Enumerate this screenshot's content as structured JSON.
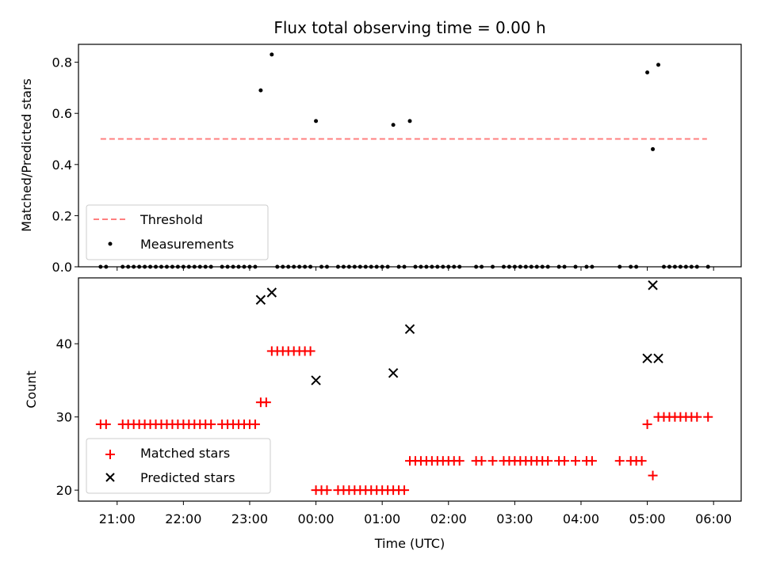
{
  "chart_data": [
    {
      "type": "scatter",
      "title": "Flux total observing time = 0.00 h",
      "xlabel": "",
      "ylabel": "Matched/Predicted stars",
      "ylim": [
        0,
        0.87
      ],
      "yticks": [
        "0.0",
        "0.2",
        "0.4",
        "0.6",
        "0.8"
      ],
      "ytick_values": [
        0,
        0.2,
        0.4,
        0.6,
        0.8
      ],
      "legend_placement": "lower-left",
      "threshold": {
        "name": "Threshold",
        "value": 0.5,
        "x_range": [
          "20:45",
          "05:54"
        ],
        "color": "#ff7f7f",
        "style": "dashed"
      },
      "series": [
        {
          "name": "Measurements",
          "color": "#000000",
          "marker": "dot",
          "points": [
            [
              "23:10",
              0.69
            ],
            [
              "23:20",
              0.83
            ],
            [
              "00:00",
              0.57
            ],
            [
              "01:10",
              0.555
            ],
            [
              "01:25",
              0.57
            ],
            [
              "05:00",
              0.76
            ],
            [
              "05:05",
              0.46
            ],
            [
              "05:10",
              0.79
            ],
            [
              "20:45",
              0
            ],
            [
              "20:50",
              0
            ],
            [
              "21:05",
              0
            ],
            [
              "21:10",
              0
            ],
            [
              "21:15",
              0
            ],
            [
              "21:20",
              0
            ],
            [
              "21:25",
              0
            ],
            [
              "21:30",
              0
            ],
            [
              "21:35",
              0
            ],
            [
              "21:40",
              0
            ],
            [
              "21:45",
              0
            ],
            [
              "21:50",
              0
            ],
            [
              "21:55",
              0
            ],
            [
              "22:00",
              0
            ],
            [
              "22:05",
              0
            ],
            [
              "22:10",
              0
            ],
            [
              "22:15",
              0
            ],
            [
              "22:20",
              0
            ],
            [
              "22:25",
              0
            ],
            [
              "22:35",
              0
            ],
            [
              "22:40",
              0
            ],
            [
              "22:45",
              0
            ],
            [
              "22:50",
              0
            ],
            [
              "22:55",
              0
            ],
            [
              "23:00",
              0
            ],
            [
              "23:05",
              0
            ],
            [
              "23:25",
              0
            ],
            [
              "23:30",
              0
            ],
            [
              "23:35",
              0
            ],
            [
              "23:40",
              0
            ],
            [
              "23:45",
              0
            ],
            [
              "23:50",
              0
            ],
            [
              "23:55",
              0
            ],
            [
              "00:05",
              0
            ],
            [
              "00:10",
              0
            ],
            [
              "00:20",
              0
            ],
            [
              "00:25",
              0
            ],
            [
              "00:30",
              0
            ],
            [
              "00:35",
              0
            ],
            [
              "00:40",
              0
            ],
            [
              "00:45",
              0
            ],
            [
              "00:50",
              0
            ],
            [
              "00:55",
              0
            ],
            [
              "01:00",
              0
            ],
            [
              "01:05",
              0
            ],
            [
              "01:15",
              0
            ],
            [
              "01:20",
              0
            ],
            [
              "01:30",
              0
            ],
            [
              "01:35",
              0
            ],
            [
              "01:40",
              0
            ],
            [
              "01:45",
              0
            ],
            [
              "01:50",
              0
            ],
            [
              "01:55",
              0
            ],
            [
              "02:00",
              0
            ],
            [
              "02:05",
              0
            ],
            [
              "02:10",
              0
            ],
            [
              "02:25",
              0
            ],
            [
              "02:30",
              0
            ],
            [
              "02:40",
              0
            ],
            [
              "02:50",
              0
            ],
            [
              "02:55",
              0
            ],
            [
              "03:00",
              0
            ],
            [
              "03:05",
              0
            ],
            [
              "03:10",
              0
            ],
            [
              "03:15",
              0
            ],
            [
              "03:20",
              0
            ],
            [
              "03:25",
              0
            ],
            [
              "03:30",
              0
            ],
            [
              "03:40",
              0
            ],
            [
              "03:45",
              0
            ],
            [
              "03:55",
              0
            ],
            [
              "04:05",
              0
            ],
            [
              "04:10",
              0
            ],
            [
              "04:35",
              0
            ],
            [
              "04:45",
              0
            ],
            [
              "04:50",
              0
            ],
            [
              "05:15",
              0
            ],
            [
              "05:20",
              0
            ],
            [
              "05:25",
              0
            ],
            [
              "05:30",
              0
            ],
            [
              "05:35",
              0
            ],
            [
              "05:40",
              0
            ],
            [
              "05:45",
              0
            ],
            [
              "05:55",
              0
            ]
          ]
        }
      ]
    },
    {
      "type": "scatter",
      "title": "",
      "xlabel": "Time (UTC)",
      "ylabel": "Count",
      "ylim": [
        18.5,
        49
      ],
      "yticks": [
        "20",
        "30",
        "40"
      ],
      "ytick_values": [
        20,
        30,
        40
      ],
      "xlim": [
        "20:25",
        "06:25"
      ],
      "xticks": [
        "21:00",
        "22:00",
        "23:00",
        "00:00",
        "01:00",
        "02:00",
        "03:00",
        "04:00",
        "05:00",
        "06:00"
      ],
      "legend_placement": "lower-left",
      "series": [
        {
          "name": "Matched stars",
          "color": "#ff0000",
          "marker": "plus",
          "points": [
            [
              "20:45",
              29
            ],
            [
              "20:50",
              29
            ],
            [
              "21:05",
              29
            ],
            [
              "21:10",
              29
            ],
            [
              "21:15",
              29
            ],
            [
              "21:20",
              29
            ],
            [
              "21:25",
              29
            ],
            [
              "21:30",
              29
            ],
            [
              "21:35",
              29
            ],
            [
              "21:40",
              29
            ],
            [
              "21:45",
              29
            ],
            [
              "21:50",
              29
            ],
            [
              "21:55",
              29
            ],
            [
              "22:00",
              29
            ],
            [
              "22:05",
              29
            ],
            [
              "22:10",
              29
            ],
            [
              "22:15",
              29
            ],
            [
              "22:20",
              29
            ],
            [
              "22:25",
              29
            ],
            [
              "22:35",
              29
            ],
            [
              "22:40",
              29
            ],
            [
              "22:45",
              29
            ],
            [
              "22:50",
              29
            ],
            [
              "22:55",
              29
            ],
            [
              "23:00",
              29
            ],
            [
              "23:05",
              29
            ],
            [
              "23:10",
              32
            ],
            [
              "23:15",
              32
            ],
            [
              "23:20",
              39
            ],
            [
              "23:25",
              39
            ],
            [
              "23:30",
              39
            ],
            [
              "23:35",
              39
            ],
            [
              "23:40",
              39
            ],
            [
              "23:45",
              39
            ],
            [
              "23:50",
              39
            ],
            [
              "23:55",
              39
            ],
            [
              "00:00",
              20
            ],
            [
              "00:05",
              20
            ],
            [
              "00:10",
              20
            ],
            [
              "00:20",
              20
            ],
            [
              "00:25",
              20
            ],
            [
              "00:30",
              20
            ],
            [
              "00:35",
              20
            ],
            [
              "00:40",
              20
            ],
            [
              "00:45",
              20
            ],
            [
              "00:50",
              20
            ],
            [
              "00:55",
              20
            ],
            [
              "01:00",
              20
            ],
            [
              "01:05",
              20
            ],
            [
              "01:10",
              20
            ],
            [
              "01:15",
              20
            ],
            [
              "01:20",
              20
            ],
            [
              "01:25",
              24
            ],
            [
              "01:30",
              24
            ],
            [
              "01:35",
              24
            ],
            [
              "01:40",
              24
            ],
            [
              "01:45",
              24
            ],
            [
              "01:50",
              24
            ],
            [
              "01:55",
              24
            ],
            [
              "02:00",
              24
            ],
            [
              "02:05",
              24
            ],
            [
              "02:10",
              24
            ],
            [
              "02:25",
              24
            ],
            [
              "02:30",
              24
            ],
            [
              "02:40",
              24
            ],
            [
              "02:50",
              24
            ],
            [
              "02:55",
              24
            ],
            [
              "03:00",
              24
            ],
            [
              "03:05",
              24
            ],
            [
              "03:10",
              24
            ],
            [
              "03:15",
              24
            ],
            [
              "03:20",
              24
            ],
            [
              "03:25",
              24
            ],
            [
              "03:30",
              24
            ],
            [
              "03:40",
              24
            ],
            [
              "03:45",
              24
            ],
            [
              "03:55",
              24
            ],
            [
              "04:05",
              24
            ],
            [
              "04:10",
              24
            ],
            [
              "04:35",
              24
            ],
            [
              "04:45",
              24
            ],
            [
              "04:50",
              24
            ],
            [
              "04:55",
              24
            ],
            [
              "05:00",
              29
            ],
            [
              "05:05",
              22
            ],
            [
              "05:10",
              30
            ],
            [
              "05:15",
              30
            ],
            [
              "05:20",
              30
            ],
            [
              "05:25",
              30
            ],
            [
              "05:30",
              30
            ],
            [
              "05:35",
              30
            ],
            [
              "05:40",
              30
            ],
            [
              "05:45",
              30
            ],
            [
              "05:55",
              30
            ]
          ]
        },
        {
          "name": "Predicted stars",
          "color": "#000000",
          "marker": "x",
          "points": [
            [
              "23:10",
              46
            ],
            [
              "23:20",
              47
            ],
            [
              "00:00",
              35
            ],
            [
              "01:10",
              36
            ],
            [
              "01:25",
              42
            ],
            [
              "05:00",
              38
            ],
            [
              "05:05",
              48
            ],
            [
              "05:10",
              38
            ]
          ]
        }
      ]
    }
  ]
}
